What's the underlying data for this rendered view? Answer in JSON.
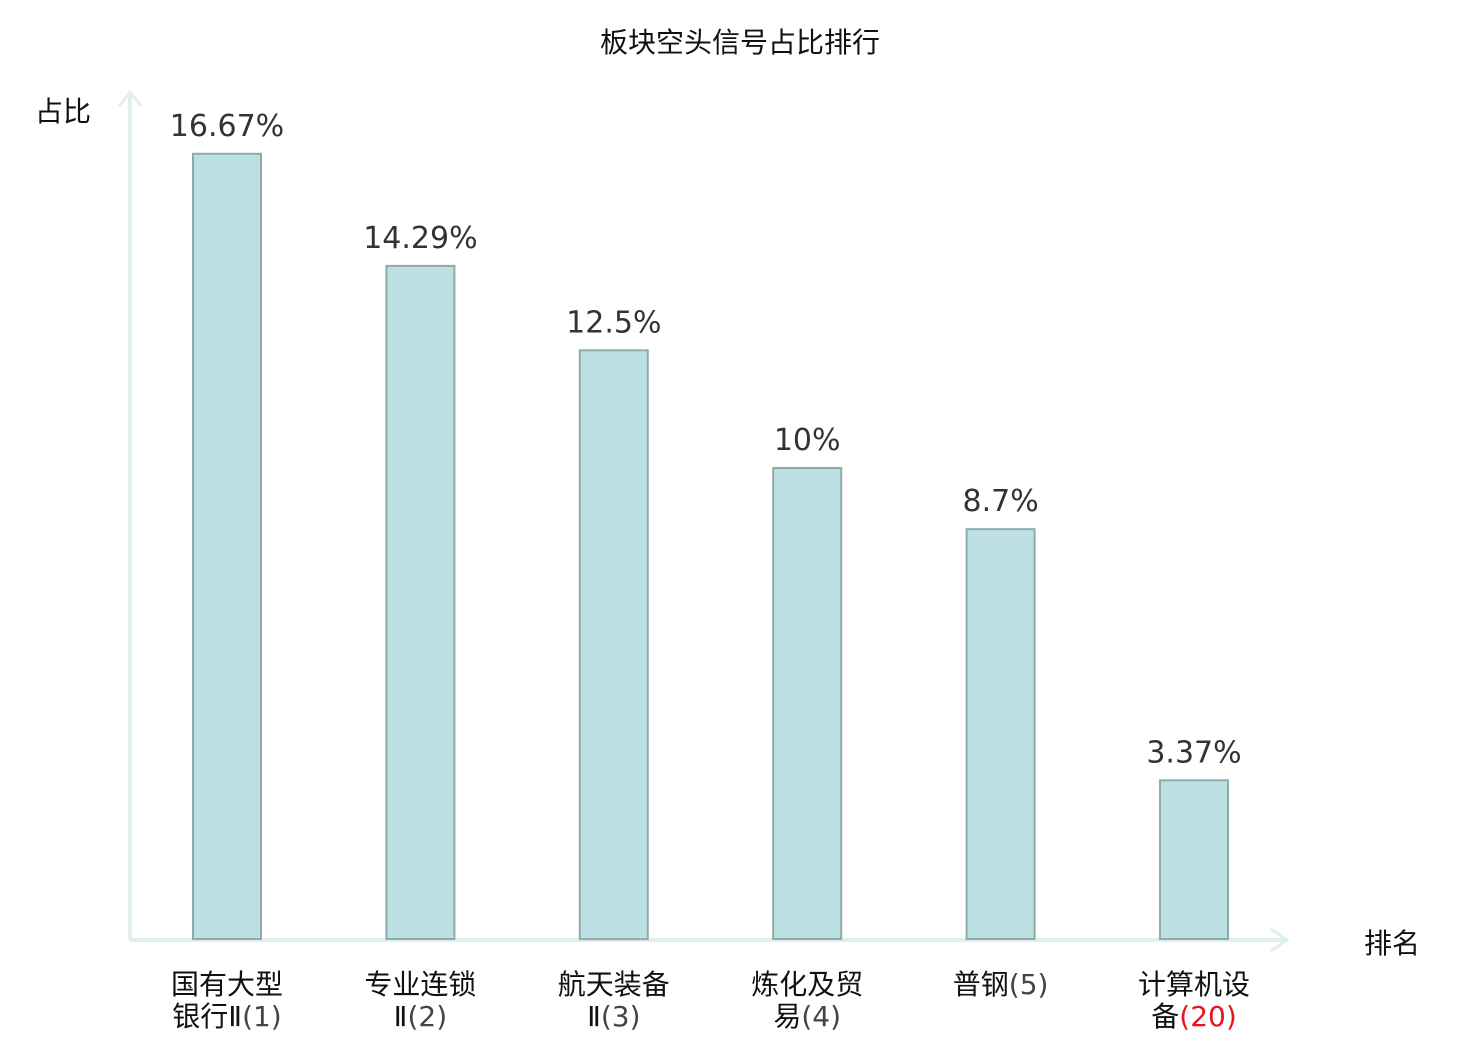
{
  "chart_data": {
    "type": "bar",
    "title": "板块空头信号占比排行",
    "ylabel": "占比",
    "xlabel": "排名",
    "grid": false,
    "ylim": [
      0,
      20
    ],
    "categories": [
      {
        "lines": [
          "国有大型",
          "银行Ⅱ"
        ],
        "rank": "(1)",
        "highlight": false
      },
      {
        "lines": [
          "专业连锁",
          "Ⅱ"
        ],
        "rank": "(2)",
        "highlight": false
      },
      {
        "lines": [
          "航天装备",
          "Ⅱ"
        ],
        "rank": "(3)",
        "highlight": false
      },
      {
        "lines": [
          "炼化及贸",
          "易"
        ],
        "rank": "(4)",
        "highlight": false
      },
      {
        "lines": [
          "普钢"
        ],
        "rank": "(5)",
        "highlight": false
      },
      {
        "lines": [
          "计算机设",
          "备"
        ],
        "rank": "(20)",
        "highlight": true
      }
    ],
    "values": [
      16.67,
      14.29,
      12.5,
      10,
      8.7,
      3.37
    ],
    "value_labels": [
      "16.67%",
      "14.29%",
      "12.5%",
      "10%",
      "8.7%",
      "3.37%"
    ],
    "colors": {
      "bar_fill": "#bde1e3",
      "bar_stroke": "#8faaab",
      "axis": "#dff0ee",
      "highlight": "#e8141c",
      "label": "#333333"
    }
  }
}
